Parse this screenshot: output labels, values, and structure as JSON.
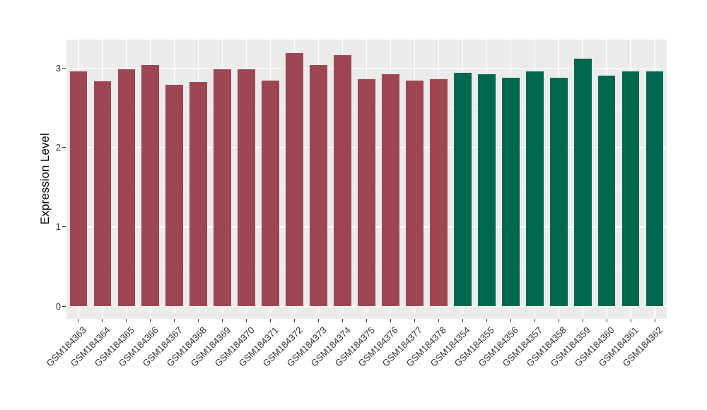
{
  "chart_data": {
    "type": "bar",
    "title": "",
    "ylabel": "Expression Level",
    "xlabel": "",
    "ylim": [
      0,
      3.35
    ],
    "yticks": [
      0,
      1,
      2,
      3
    ],
    "yticks_minor": [
      0.5,
      1.5,
      2.5
    ],
    "grid": "on",
    "legend": "none",
    "x_tick_rotation": -45,
    "panel_background": "#EBEBEB",
    "gridline_color": "#FFFFFF",
    "tick_color": "#333333",
    "axis_text_color": "#333333",
    "group_colors": {
      "left_group": "#9E4652",
      "right_group": "#00684C"
    },
    "categories": [
      "GSM184363",
      "GSM184364",
      "GSM184365",
      "GSM184366",
      "GSM184367",
      "GSM184368",
      "GSM184369",
      "GSM184370",
      "GSM184371",
      "GSM184372",
      "GSM184373",
      "GSM184374",
      "GSM184375",
      "GSM184376",
      "GSM184377",
      "GSM184378",
      "GSM184354",
      "GSM184355",
      "GSM184356",
      "GSM184357",
      "GSM184358",
      "GSM184359",
      "GSM184360",
      "GSM184361",
      "GSM184362"
    ],
    "values": [
      2.96,
      2.84,
      2.99,
      3.04,
      2.79,
      2.83,
      2.99,
      2.99,
      2.85,
      3.19,
      3.04,
      3.17,
      2.86,
      2.93,
      2.85,
      2.86,
      2.94,
      2.93,
      2.88,
      2.96,
      2.88,
      3.12,
      2.91,
      2.96,
      2.96
    ],
    "bar_colors": [
      "#9E4652",
      "#9E4652",
      "#9E4652",
      "#9E4652",
      "#9E4652",
      "#9E4652",
      "#9E4652",
      "#9E4652",
      "#9E4652",
      "#9E4652",
      "#9E4652",
      "#9E4652",
      "#9E4652",
      "#9E4652",
      "#9E4652",
      "#9E4652",
      "#00684C",
      "#00684C",
      "#00684C",
      "#00684C",
      "#00684C",
      "#00684C",
      "#00684C",
      "#00684C",
      "#00684C"
    ]
  }
}
